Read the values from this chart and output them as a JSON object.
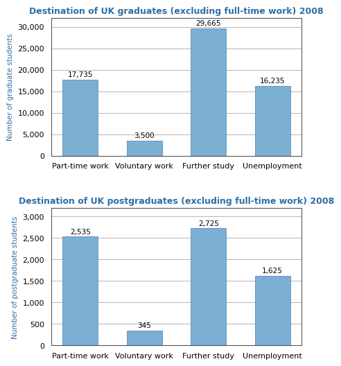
{
  "grad_title": "Destination of UK graduates (excluding full-time work) 2008",
  "postgrad_title": "Destination of UK postgraduates (excluding full-time work) 2008",
  "categories": [
    "Part-time work",
    "Voluntary work",
    "Further study",
    "Unemployment"
  ],
  "grad_values": [
    17735,
    3500,
    29665,
    16235
  ],
  "postgrad_values": [
    2535,
    345,
    2725,
    1625
  ],
  "grad_ylabel": "Number of graduate students",
  "postgrad_ylabel": "Number of postgraduate students",
  "bar_color": "#7BAFD4",
  "grad_yticks": [
    0,
    5000,
    10000,
    15000,
    20000,
    25000,
    30000
  ],
  "postgrad_yticks": [
    0,
    500,
    1000,
    1500,
    2000,
    2500,
    3000
  ],
  "grad_ylim": [
    0,
    32000
  ],
  "postgrad_ylim": [
    0,
    3200
  ],
  "title_color": "#2F6DA4",
  "ylabel_color": "#2F6DA4",
  "bg_color": "#FFFFFF",
  "grid_color": "#AAAAAA",
  "spine_color": "#555555",
  "label_fontsize": 7.5,
  "title_fontsize": 9.0,
  "value_fontsize": 7.5,
  "tick_fontsize": 8.0,
  "bar_width": 0.55
}
